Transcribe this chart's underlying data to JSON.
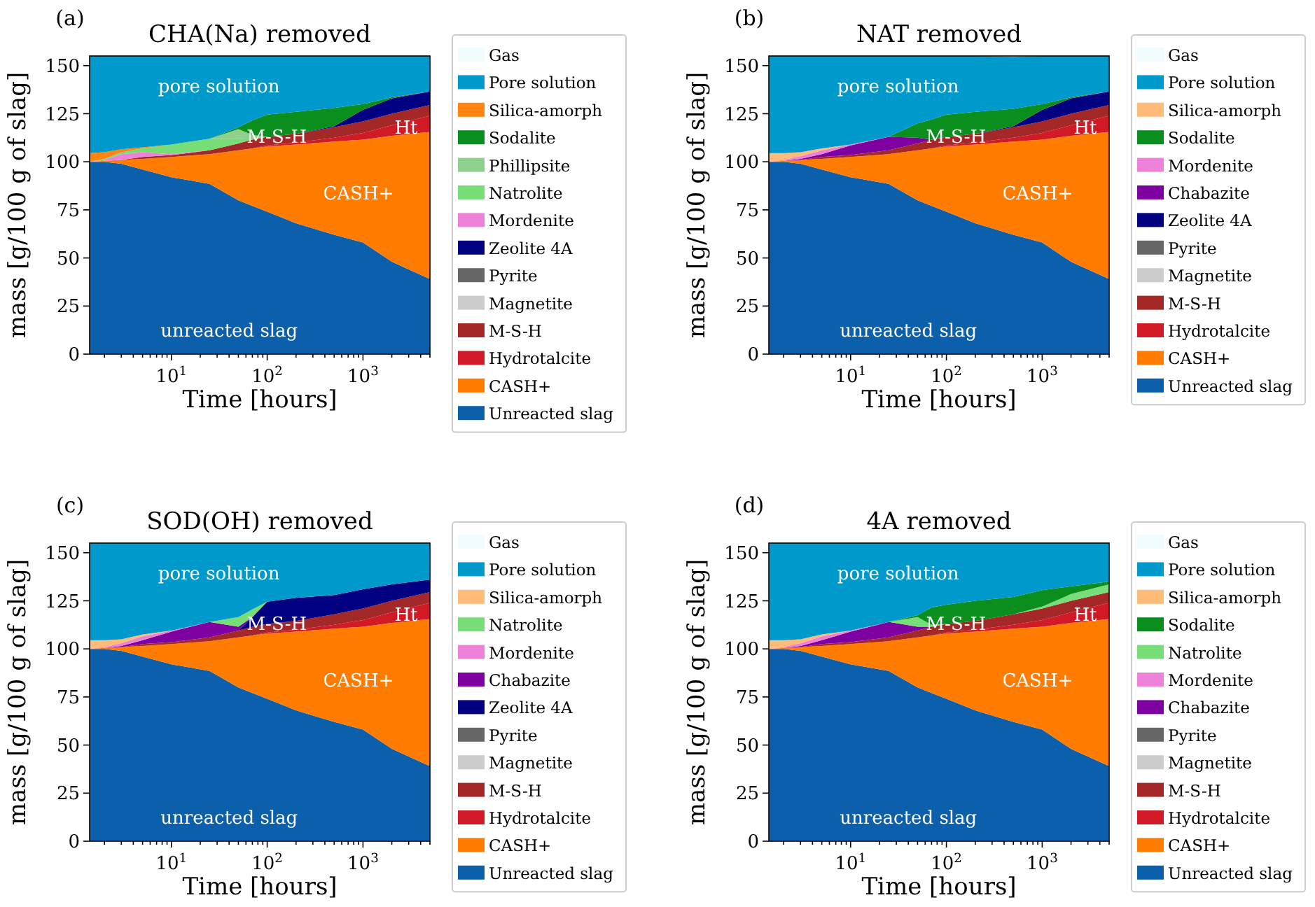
{
  "chart_data": [
    {
      "type": "area",
      "stacked": true,
      "log": "x",
      "legend": "right",
      "title": "CHA(Na) removed",
      "xlabel": "Time [hours]",
      "ylabel": "mass [g/100 g of slag]",
      "xlim": [
        1.4,
        5000
      ],
      "ylim": [
        0,
        155
      ],
      "xticks": [
        {
          "value": 2,
          "label": null
        },
        {
          "value": 3,
          "label": null
        },
        {
          "value": 4,
          "label": null
        },
        {
          "value": 5,
          "label": null
        },
        {
          "value": 6,
          "label": null
        },
        {
          "value": 7,
          "label": null
        },
        {
          "value": 8,
          "label": null
        },
        {
          "value": 9,
          "label": null
        },
        {
          "value": 10,
          "label": "10$^{1}$"
        },
        {
          "value": 20,
          "label": null
        },
        {
          "value": 30,
          "label": null
        },
        {
          "value": 40,
          "label": null
        },
        {
          "value": 50,
          "label": null
        },
        {
          "value": 60,
          "label": null
        },
        {
          "value": 70,
          "label": null
        },
        {
          "value": 80,
          "label": null
        },
        {
          "value": 90,
          "label": null
        },
        {
          "value": 100,
          "label": "10$^{2}$"
        },
        {
          "value": 200,
          "label": null
        },
        {
          "value": 300,
          "label": null
        },
        {
          "value": 400,
          "label": null
        },
        {
          "value": 500,
          "label": null
        },
        {
          "value": 600,
          "label": null
        },
        {
          "value": 700,
          "label": null
        },
        {
          "value": 800,
          "label": null
        },
        {
          "value": 900,
          "label": null
        },
        {
          "value": 1000,
          "label": "10$^{3}$"
        },
        {
          "value": 2000,
          "label": null
        },
        {
          "value": 3000,
          "label": null
        },
        {
          "value": 4000,
          "label": null
        },
        {
          "value": 5000,
          "label": null
        }
      ],
      "yticks": [
        0,
        25,
        50,
        75,
        100,
        125,
        150
      ],
      "x": [
        1.4,
        2,
        3,
        5,
        10,
        25,
        50,
        70,
        100,
        200,
        500,
        1000,
        2000,
        5000
      ],
      "annotations": [
        "(a)",
        "pore solution",
        "unreacted slag",
        "CASH+",
        "M-S-H",
        "Ht"
      ],
      "series": [
        {
          "name": "Unreacted slag",
          "color": "#0b5fab",
          "values": [
            100,
            100,
            99,
            96,
            92,
            88.5,
            80,
            77,
            74,
            68,
            62,
            58,
            48,
            39
          ]
        },
        {
          "name": "CASH+",
          "color": "#ff7c00",
          "values": [
            0,
            0.5,
            2,
            5.5,
            10.5,
            15.5,
            26,
            30,
            34,
            41,
            48.5,
            53.5,
            65.5,
            76.5
          ]
        },
        {
          "name": "Hydrotalcite",
          "color": "#d11a26",
          "values": [
            null,
            null,
            null,
            null,
            null,
            null,
            null,
            0,
            0.5,
            1,
            2,
            3.5,
            5.5,
            8.5
          ]
        },
        {
          "name": "M-S-H",
          "color": "#a52828",
          "values": [
            null,
            null,
            0,
            1,
            1,
            2,
            3.5,
            4.5,
            4.5,
            4.5,
            5.5,
            6,
            6,
            5.5
          ]
        },
        {
          "name": "Magnetite",
          "color": "#cccccc",
          "values": [
            null,
            null,
            null,
            null,
            null,
            null,
            null,
            null,
            null,
            null,
            null,
            null,
            null,
            null
          ]
        },
        {
          "name": "Pyrite",
          "color": "#666666",
          "values": [
            null,
            null,
            null,
            null,
            null,
            null,
            null,
            null,
            null,
            null,
            null,
            null,
            null,
            null
          ]
        },
        {
          "name": "Zeolite 4A",
          "color": "#000080",
          "values": [
            null,
            null,
            null,
            null,
            null,
            null,
            null,
            null,
            null,
            0,
            0.5,
            6,
            8,
            7
          ]
        },
        {
          "name": "Mordenite",
          "color": "#ee82d8",
          "values": [
            0,
            0.5,
            3,
            2.5,
            0.5,
            0,
            null,
            null,
            null,
            null,
            null,
            null,
            null,
            null
          ]
        },
        {
          "name": "Natrolite",
          "color": "#77dd77",
          "values": [
            0,
            0.5,
            1,
            2,
            5,
            6,
            2.5,
            0,
            null,
            null,
            null,
            null,
            null,
            null
          ]
        },
        {
          "name": "Phillipsite",
          "color": "#8fd08f",
          "values": [
            null,
            null,
            null,
            null,
            null,
            0,
            5,
            2.5,
            0,
            null,
            null,
            null,
            null,
            null
          ]
        },
        {
          "name": "Sodalite",
          "color": "#0a8f1e",
          "values": [
            null,
            null,
            null,
            null,
            null,
            0,
            1,
            7.5,
            11.5,
            11.5,
            9.5,
            3,
            0.5,
            0
          ]
        },
        {
          "name": "Silica-amorph",
          "color": "#ff8410",
          "values": [
            4.5,
            3.5,
            1.5,
            0.5,
            0,
            null,
            null,
            null,
            null,
            null,
            null,
            null,
            null,
            null
          ]
        },
        {
          "name": "Pore solution",
          "color": "#0099cc",
          "values": [
            50.5,
            50,
            48.5,
            47.5,
            46,
            43,
            37,
            33.5,
            30.5,
            29,
            27,
            25,
            21.5,
            18.5
          ]
        },
        {
          "name": "Gas",
          "color": "#f0fcff",
          "values": [
            null,
            null,
            null,
            null,
            null,
            null,
            null,
            null,
            null,
            null,
            null,
            null,
            null,
            null
          ]
        }
      ]
    },
    {
      "type": "area",
      "stacked": true,
      "log": "x",
      "legend": "right",
      "title": "NAT removed",
      "xlabel": "Time [hours]",
      "ylabel": "mass [g/100 g of slag]",
      "xlim": [
        1.4,
        5000
      ],
      "ylim": [
        0,
        155
      ],
      "xticks": [
        {
          "value": 2,
          "label": null
        },
        {
          "value": 3,
          "label": null
        },
        {
          "value": 4,
          "label": null
        },
        {
          "value": 5,
          "label": null
        },
        {
          "value": 6,
          "label": null
        },
        {
          "value": 7,
          "label": null
        },
        {
          "value": 8,
          "label": null
        },
        {
          "value": 9,
          "label": null
        },
        {
          "value": 10,
          "label": "10$^{1}$"
        },
        {
          "value": 20,
          "label": null
        },
        {
          "value": 30,
          "label": null
        },
        {
          "value": 40,
          "label": null
        },
        {
          "value": 50,
          "label": null
        },
        {
          "value": 60,
          "label": null
        },
        {
          "value": 70,
          "label": null
        },
        {
          "value": 80,
          "label": null
        },
        {
          "value": 90,
          "label": null
        },
        {
          "value": 100,
          "label": "10$^{2}$"
        },
        {
          "value": 200,
          "label": null
        },
        {
          "value": 300,
          "label": null
        },
        {
          "value": 400,
          "label": null
        },
        {
          "value": 500,
          "label": null
        },
        {
          "value": 600,
          "label": null
        },
        {
          "value": 700,
          "label": null
        },
        {
          "value": 800,
          "label": null
        },
        {
          "value": 900,
          "label": null
        },
        {
          "value": 1000,
          "label": "10$^{3}$"
        },
        {
          "value": 2000,
          "label": null
        },
        {
          "value": 3000,
          "label": null
        },
        {
          "value": 4000,
          "label": null
        },
        {
          "value": 5000,
          "label": null
        }
      ],
      "yticks": [
        0,
        25,
        50,
        75,
        100,
        125,
        150
      ],
      "x": [
        1.4,
        2,
        3,
        5,
        10,
        25,
        50,
        70,
        100,
        200,
        500,
        1000,
        2000,
        5000
      ],
      "annotations": [
        "(b)",
        "pore solution",
        "unreacted slag",
        "CASH+",
        "M-S-H",
        "Ht"
      ],
      "series": [
        {
          "name": "Unreacted slag",
          "color": "#0b5fab",
          "values": [
            100,
            100,
            99,
            96,
            92,
            88.5,
            80,
            77,
            74,
            68,
            62,
            58,
            48,
            39
          ]
        },
        {
          "name": "CASH+",
          "color": "#ff7c00",
          "values": [
            0,
            0.5,
            2,
            5.5,
            10.5,
            15.5,
            26,
            30,
            34,
            41,
            48.5,
            53.5,
            65.5,
            76.5
          ]
        },
        {
          "name": "Hydrotalcite",
          "color": "#d11a26",
          "values": [
            null,
            null,
            null,
            null,
            null,
            null,
            null,
            0,
            0.5,
            1,
            2,
            3.5,
            5.5,
            8.5
          ]
        },
        {
          "name": "M-S-H",
          "color": "#a52828",
          "values": [
            null,
            null,
            0,
            1,
            1,
            2,
            3.5,
            4.5,
            4.5,
            4.5,
            5.5,
            6,
            6,
            5.5
          ]
        },
        {
          "name": "Magnetite",
          "color": "#cccccc",
          "values": [
            null,
            null,
            null,
            null,
            null,
            null,
            null,
            null,
            null,
            null,
            null,
            null,
            null,
            null
          ]
        },
        {
          "name": "Pyrite",
          "color": "#666666",
          "values": [
            null,
            null,
            null,
            null,
            null,
            null,
            null,
            null,
            null,
            null,
            null,
            null,
            null,
            null
          ]
        },
        {
          "name": "Zeolite 4A",
          "color": "#000080",
          "values": [
            null,
            null,
            null,
            null,
            null,
            null,
            null,
            null,
            null,
            0,
            0.5,
            6,
            8,
            7
          ]
        },
        {
          "name": "Chabazite",
          "color": "#7f00a0",
          "values": [
            null,
            0,
            0.5,
            1.5,
            5,
            7,
            3,
            0,
            null,
            null,
            null,
            null,
            null,
            null
          ]
        },
        {
          "name": "Mordenite",
          "color": "#ee82d8",
          "values": [
            0,
            0.5,
            1.5,
            2,
            0.5,
            0,
            null,
            null,
            null,
            null,
            null,
            null,
            null,
            null
          ]
        },
        {
          "name": "Sodalite",
          "color": "#0a8f1e",
          "values": [
            null,
            null,
            null,
            null,
            null,
            0,
            7.5,
            10.5,
            11.5,
            11.5,
            9,
            3,
            0.5,
            0
          ]
        },
        {
          "name": "Silica-amorph",
          "color": "#ffbb78",
          "values": [
            4.5,
            3.5,
            2,
            1,
            0,
            null,
            null,
            null,
            null,
            null,
            null,
            null,
            null,
            null
          ]
        },
        {
          "name": "Pore solution",
          "color": "#0099cc",
          "values": [
            50.5,
            50.5,
            50,
            48,
            46,
            42,
            35,
            33,
            30.5,
            29,
            27,
            25,
            21.5,
            18.5
          ]
        },
        {
          "name": "Gas",
          "color": "#f0fcff",
          "values": [
            null,
            null,
            null,
            null,
            null,
            null,
            null,
            null,
            null,
            null,
            null,
            null,
            null,
            null
          ]
        }
      ]
    },
    {
      "type": "area",
      "stacked": true,
      "log": "x",
      "legend": "right",
      "title": "SOD(OH) removed",
      "xlabel": "Time [hours]",
      "ylabel": "mass [g/100 g of slag]",
      "xlim": [
        1.4,
        5000
      ],
      "ylim": [
        0,
        155
      ],
      "xticks": [
        {
          "value": 2,
          "label": null
        },
        {
          "value": 3,
          "label": null
        },
        {
          "value": 4,
          "label": null
        },
        {
          "value": 5,
          "label": null
        },
        {
          "value": 6,
          "label": null
        },
        {
          "value": 7,
          "label": null
        },
        {
          "value": 8,
          "label": null
        },
        {
          "value": 9,
          "label": null
        },
        {
          "value": 10,
          "label": "10$^{1}$"
        },
        {
          "value": 20,
          "label": null
        },
        {
          "value": 30,
          "label": null
        },
        {
          "value": 40,
          "label": null
        },
        {
          "value": 50,
          "label": null
        },
        {
          "value": 60,
          "label": null
        },
        {
          "value": 70,
          "label": null
        },
        {
          "value": 80,
          "label": null
        },
        {
          "value": 90,
          "label": null
        },
        {
          "value": 100,
          "label": "10$^{2}$"
        },
        {
          "value": 200,
          "label": null
        },
        {
          "value": 300,
          "label": null
        },
        {
          "value": 400,
          "label": null
        },
        {
          "value": 500,
          "label": null
        },
        {
          "value": 600,
          "label": null
        },
        {
          "value": 700,
          "label": null
        },
        {
          "value": 800,
          "label": null
        },
        {
          "value": 900,
          "label": null
        },
        {
          "value": 1000,
          "label": "10$^{3}$"
        },
        {
          "value": 2000,
          "label": null
        },
        {
          "value": 3000,
          "label": null
        },
        {
          "value": 4000,
          "label": null
        },
        {
          "value": 5000,
          "label": null
        }
      ],
      "yticks": [
        0,
        25,
        50,
        75,
        100,
        125,
        150
      ],
      "x": [
        1.4,
        2,
        3,
        5,
        10,
        25,
        50,
        70,
        100,
        200,
        500,
        1000,
        2000,
        5000
      ],
      "annotations": [
        "(c)",
        "pore solution",
        "unreacted slag",
        "CASH+",
        "M-S-H",
        "Ht"
      ],
      "series": [
        {
          "name": "Unreacted slag",
          "color": "#0b5fab",
          "values": [
            100,
            100,
            99,
            96,
            92,
            88.5,
            80,
            77,
            74,
            68,
            62,
            58,
            48,
            39
          ]
        },
        {
          "name": "CASH+",
          "color": "#ff7c00",
          "values": [
            0,
            0.5,
            2,
            5.5,
            10.5,
            15.5,
            26,
            30,
            34,
            41,
            48.5,
            53.5,
            65.5,
            76.5
          ]
        },
        {
          "name": "Hydrotalcite",
          "color": "#d11a26",
          "values": [
            null,
            null,
            null,
            null,
            null,
            null,
            null,
            0,
            0.5,
            1,
            2,
            3.5,
            5.5,
            8.5
          ]
        },
        {
          "name": "M-S-H",
          "color": "#a52828",
          "values": [
            null,
            null,
            0,
            1,
            1,
            2,
            3.5,
            4.5,
            4.5,
            4.5,
            5.5,
            6,
            6,
            5.5
          ]
        },
        {
          "name": "Magnetite",
          "color": "#cccccc",
          "values": [
            null,
            null,
            null,
            null,
            null,
            null,
            null,
            null,
            null,
            null,
            null,
            null,
            null,
            null
          ]
        },
        {
          "name": "Pyrite",
          "color": "#666666",
          "values": [
            null,
            null,
            null,
            null,
            null,
            null,
            null,
            null,
            null,
            null,
            null,
            null,
            null,
            null
          ]
        },
        {
          "name": "Zeolite 4A",
          "color": "#000080",
          "values": [
            null,
            null,
            null,
            null,
            null,
            null,
            0,
            5,
            11.5,
            12,
            10,
            10,
            8.5,
            6.5
          ]
        },
        {
          "name": "Chabazite",
          "color": "#7f00a0",
          "values": [
            null,
            0,
            0.5,
            2,
            5.5,
            8,
            2,
            0,
            null,
            null,
            null,
            null,
            null,
            null
          ]
        },
        {
          "name": "Mordenite",
          "color": "#ee82d8",
          "values": [
            0,
            0.5,
            1.5,
            2,
            0.5,
            0,
            null,
            null,
            null,
            null,
            null,
            null,
            null,
            null
          ]
        },
        {
          "name": "Natrolite",
          "color": "#77dd77",
          "values": [
            null,
            null,
            null,
            null,
            null,
            0,
            5,
            4,
            0,
            null,
            null,
            null,
            null,
            null
          ]
        },
        {
          "name": "Silica-amorph",
          "color": "#ffbb78",
          "values": [
            4.5,
            3.5,
            2,
            1,
            0,
            null,
            null,
            null,
            null,
            null,
            null,
            null,
            null,
            null
          ]
        },
        {
          "name": "Pore solution",
          "color": "#0099cc",
          "values": [
            50.5,
            50.5,
            50,
            47.5,
            45.5,
            41,
            38.5,
            34.5,
            30.5,
            28.5,
            27,
            24,
            21.5,
            19
          ]
        },
        {
          "name": "Gas",
          "color": "#f0fcff",
          "values": [
            null,
            null,
            null,
            null,
            null,
            null,
            null,
            null,
            null,
            null,
            null,
            null,
            null,
            null
          ]
        }
      ]
    },
    {
      "type": "area",
      "stacked": true,
      "log": "x",
      "legend": "right",
      "title": "4A removed",
      "xlabel": "Time [hours]",
      "ylabel": "mass [g/100 g of slag]",
      "xlim": [
        1.4,
        5000
      ],
      "ylim": [
        0,
        155
      ],
      "xticks": [
        {
          "value": 2,
          "label": null
        },
        {
          "value": 3,
          "label": null
        },
        {
          "value": 4,
          "label": null
        },
        {
          "value": 5,
          "label": null
        },
        {
          "value": 6,
          "label": null
        },
        {
          "value": 7,
          "label": null
        },
        {
          "value": 8,
          "label": null
        },
        {
          "value": 9,
          "label": null
        },
        {
          "value": 10,
          "label": "10$^{1}$"
        },
        {
          "value": 20,
          "label": null
        },
        {
          "value": 30,
          "label": null
        },
        {
          "value": 40,
          "label": null
        },
        {
          "value": 50,
          "label": null
        },
        {
          "value": 60,
          "label": null
        },
        {
          "value": 70,
          "label": null
        },
        {
          "value": 80,
          "label": null
        },
        {
          "value": 90,
          "label": null
        },
        {
          "value": 100,
          "label": "10$^{2}$"
        },
        {
          "value": 200,
          "label": null
        },
        {
          "value": 300,
          "label": null
        },
        {
          "value": 400,
          "label": null
        },
        {
          "value": 500,
          "label": null
        },
        {
          "value": 600,
          "label": null
        },
        {
          "value": 700,
          "label": null
        },
        {
          "value": 800,
          "label": null
        },
        {
          "value": 900,
          "label": null
        },
        {
          "value": 1000,
          "label": "10$^{3}$"
        },
        {
          "value": 2000,
          "label": null
        },
        {
          "value": 3000,
          "label": null
        },
        {
          "value": 4000,
          "label": null
        },
        {
          "value": 5000,
          "label": null
        }
      ],
      "yticks": [
        0,
        25,
        50,
        75,
        100,
        125,
        150
      ],
      "x": [
        1.4,
        2,
        3,
        5,
        10,
        25,
        50,
        70,
        100,
        200,
        500,
        1000,
        2000,
        5000
      ],
      "annotations": [
        "(d)",
        "pore solution",
        "unreacted slag",
        "CASH+",
        "M-S-H",
        "Ht"
      ],
      "series": [
        {
          "name": "Unreacted slag",
          "color": "#0b5fab",
          "values": [
            100,
            100,
            99,
            96,
            92,
            88.5,
            80,
            77,
            74,
            68,
            62,
            58,
            48,
            39
          ]
        },
        {
          "name": "CASH+",
          "color": "#ff7c00",
          "values": [
            0,
            0.5,
            2,
            5.5,
            10.5,
            15.5,
            26,
            30,
            34,
            41,
            48.5,
            53.5,
            65.5,
            76.5
          ]
        },
        {
          "name": "Hydrotalcite",
          "color": "#d11a26",
          "values": [
            null,
            null,
            null,
            null,
            null,
            null,
            null,
            0,
            0.5,
            1,
            2,
            3.5,
            5.5,
            8.5
          ]
        },
        {
          "name": "M-S-H",
          "color": "#a52828",
          "values": [
            null,
            null,
            0,
            1,
            1,
            2,
            3.5,
            4.5,
            4.5,
            4.5,
            5.5,
            6,
            6,
            5.5
          ]
        },
        {
          "name": "Magnetite",
          "color": "#cccccc",
          "values": [
            null,
            null,
            null,
            null,
            null,
            null,
            null,
            null,
            null,
            null,
            null,
            null,
            null,
            null
          ]
        },
        {
          "name": "Pyrite",
          "color": "#666666",
          "values": [
            null,
            null,
            null,
            null,
            null,
            null,
            null,
            null,
            null,
            null,
            null,
            null,
            null,
            null
          ]
        },
        {
          "name": "Chabazite",
          "color": "#7f00a0",
          "values": [
            null,
            0,
            0.5,
            2,
            5.5,
            8,
            2,
            0,
            null,
            null,
            null,
            null,
            null,
            null
          ]
        },
        {
          "name": "Mordenite",
          "color": "#ee82d8",
          "values": [
            0,
            0.5,
            1.5,
            2,
            0.5,
            0,
            null,
            null,
            null,
            null,
            null,
            null,
            null,
            null
          ]
        },
        {
          "name": "Natrolite",
          "color": "#77dd77",
          "values": [
            null,
            null,
            null,
            null,
            null,
            0,
            5,
            1,
            0,
            null,
            0,
            1,
            3.5,
            4
          ]
        },
        {
          "name": "Sodalite",
          "color": "#0a8f1e",
          "values": [
            null,
            null,
            null,
            null,
            null,
            0,
            1,
            9,
            10,
            10.5,
            9,
            8.5,
            4,
            1.5
          ]
        },
        {
          "name": "Silica-amorph",
          "color": "#ffbb78",
          "values": [
            4.5,
            3.5,
            2,
            1,
            0,
            null,
            null,
            null,
            null,
            null,
            null,
            null,
            null,
            null
          ]
        },
        {
          "name": "Pore solution",
          "color": "#0099cc",
          "values": [
            50.5,
            50.5,
            50,
            47.5,
            45.5,
            41,
            37.5,
            33.5,
            32,
            30,
            28,
            24.5,
            22.5,
            20
          ]
        },
        {
          "name": "Gas",
          "color": "#f0fcff",
          "values": [
            null,
            null,
            null,
            null,
            null,
            null,
            null,
            null,
            null,
            null,
            null,
            null,
            null,
            null
          ]
        }
      ]
    }
  ]
}
